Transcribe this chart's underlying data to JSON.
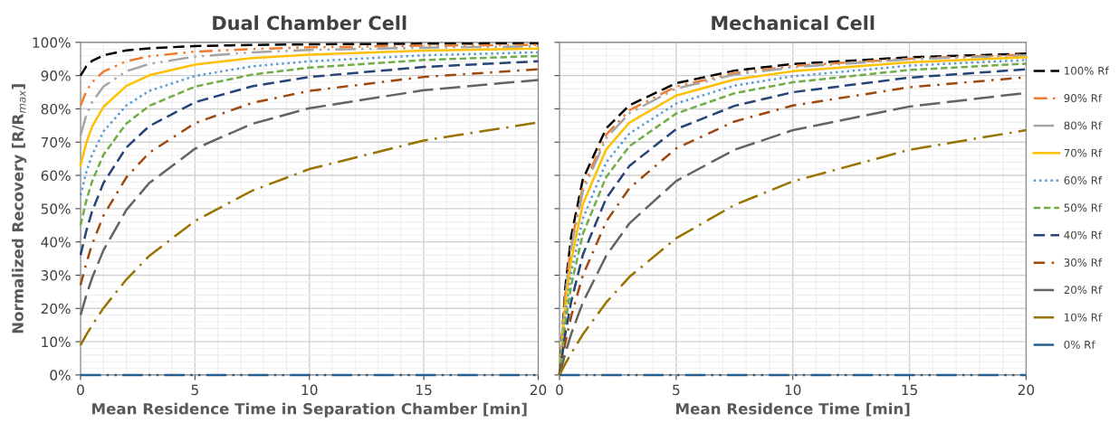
{
  "chart_data": [
    {
      "type": "line",
      "title": "Dual Chamber Cell",
      "xlabel": "Mean Residence Time in Separation Chamber [min]",
      "ylabel": "Normalized Recovery [R/R$_{max}$]",
      "x": [
        0,
        0.25,
        0.5,
        1,
        2,
        3,
        5,
        7.5,
        10,
        15,
        20
      ],
      "xlim": [
        0,
        20
      ],
      "xticks": [
        0,
        5,
        10,
        15,
        20
      ],
      "ylim": [
        0,
        100
      ],
      "yticks": [
        {
          "value": 0,
          "label": "0%"
        },
        {
          "value": 10,
          "label": "10%"
        },
        {
          "value": 20,
          "label": "20%"
        },
        {
          "value": 30,
          "label": "30%"
        },
        {
          "value": 40,
          "label": "40%"
        },
        {
          "value": 50,
          "label": "50%"
        },
        {
          "value": 60,
          "label": "60%"
        },
        {
          "value": 70,
          "label": "70%"
        },
        {
          "value": 80,
          "label": "80%"
        },
        {
          "value": 90,
          "label": "90%"
        },
        {
          "value": 100,
          "label": "100%"
        }
      ],
      "grid": true,
      "legend": false,
      "marker": "none",
      "series": [
        {
          "color": "#000000",
          "line_style": "dashed",
          "values": [
            90,
            92.8,
            94.4,
            96.1,
            97.6,
            98.2,
            98.9,
            99.2,
            99.4,
            99.6,
            99.7
          ]
        },
        {
          "color": "#ed7d31",
          "line_style": "dashdotdot",
          "values": [
            81,
            85.3,
            88.0,
            91.2,
            94.3,
            95.8,
            97.2,
            98.0,
            98.5,
            99.0,
            99.2
          ]
        },
        {
          "color": "#a5a5a5",
          "line_style": "longdashdotdot",
          "values": [
            72,
            78.1,
            82.0,
            86.7,
            91.3,
            93.5,
            95.7,
            97.0,
            97.7,
            98.4,
            98.8
          ]
        },
        {
          "color": "#ffc000",
          "line_style": "solid",
          "values": [
            63,
            69.8,
            74.6,
            80.6,
            86.9,
            90.1,
            93.3,
            95.3,
            96.3,
            97.5,
            98.1
          ]
        },
        {
          "color": "#5b9bd5",
          "line_style": "dotted",
          "values": [
            54,
            61.0,
            66.1,
            73.2,
            81.0,
            85.4,
            89.9,
            92.8,
            94.3,
            96.1,
            97.0
          ]
        },
        {
          "color": "#70ad47",
          "line_style": "shortdashed",
          "values": [
            45,
            52.4,
            58.1,
            66.2,
            75.6,
            80.9,
            86.7,
            90.3,
            92.4,
            94.7,
            95.9
          ]
        },
        {
          "color": "#264478",
          "line_style": "dashed",
          "values": [
            36,
            43.3,
            49.1,
            57.7,
            68.4,
            74.8,
            82.0,
            86.8,
            89.6,
            92.6,
            94.3
          ]
        },
        {
          "color": "#9e480e",
          "line_style": "dashdot",
          "values": [
            27,
            33.6,
            39.2,
            47.9,
            59.4,
            66.8,
            75.7,
            81.8,
            85.4,
            89.6,
            91.9
          ]
        },
        {
          "color": "#636363",
          "line_style": "longdashed",
          "values": [
            18,
            23.9,
            29.1,
            37.5,
            49.6,
            57.7,
            68.0,
            75.5,
            80.2,
            85.6,
            88.7
          ]
        },
        {
          "color": "#997300",
          "line_style": "longdashdot",
          "values": [
            9,
            12.1,
            14.9,
            20.1,
            28.7,
            35.8,
            46.3,
            55.4,
            61.9,
            70.5,
            75.9
          ]
        },
        {
          "color": "#255e91",
          "line_style": "longdashdotdot",
          "values": [
            0,
            0,
            0,
            0,
            0,
            0,
            0,
            0,
            0,
            0,
            0
          ]
        }
      ]
    },
    {
      "type": "line",
      "title": "Mechanical Cell",
      "xlabel": "Mean Residence Time [min]",
      "x": [
        0,
        0.25,
        0.5,
        1,
        2,
        3,
        5,
        7.5,
        10,
        15,
        20
      ],
      "xlim": [
        0,
        20
      ],
      "xticks": [
        0,
        5,
        10,
        15,
        20
      ],
      "ylim": [
        0,
        100
      ],
      "yticks": [
        0,
        10,
        20,
        30,
        40,
        50,
        60,
        70,
        80,
        90,
        100
      ],
      "tick_labels": "x",
      "grid": true,
      "legend": "right",
      "marker": "none",
      "series": [
        {
          "name": "100% Rf",
          "color": "#000000",
          "line_style": "dashed",
          "values": [
            0,
            26.3,
            41.7,
            58.8,
            74.1,
            81.1,
            87.7,
            91.5,
            93.5,
            95.5,
            96.6
          ]
        },
        {
          "name": "90% Rf",
          "color": "#ed7d31",
          "line_style": "dashdotdot",
          "values": [
            0,
            24.5,
            39.4,
            56.5,
            72.2,
            79.6,
            86.7,
            90.7,
            92.9,
            95.1,
            96.3
          ]
        },
        {
          "name": "80% Rf",
          "color": "#a5a5a5",
          "line_style": "longdashdotdot",
          "values": [
            0,
            23.6,
            38.2,
            55.2,
            71.2,
            78.7,
            86.1,
            90.3,
            92.5,
            94.9,
            96.1
          ]
        },
        {
          "name": "70% Rf",
          "color": "#ffc000",
          "line_style": "solid",
          "values": [
            0,
            20.8,
            34.5,
            51.3,
            67.8,
            75.9,
            84.0,
            88.8,
            91.3,
            94.0,
            95.5
          ]
        },
        {
          "name": "60% Rf",
          "color": "#5b9bd5",
          "line_style": "dotted",
          "values": [
            0,
            18.1,
            30.7,
            47.0,
            63.9,
            72.6,
            81.6,
            87.0,
            89.8,
            93.0,
            94.7
          ]
        },
        {
          "name": "50% Rf",
          "color": "#70ad47",
          "line_style": "shortdashed",
          "values": [
            0,
            15.5,
            26.9,
            42.4,
            59.5,
            68.8,
            78.6,
            84.7,
            88.0,
            91.7,
            93.6
          ]
        },
        {
          "name": "40% Rf",
          "color": "#264478",
          "line_style": "dashed",
          "values": [
            0,
            12.4,
            22.0,
            36.1,
            53.1,
            62.9,
            73.9,
            80.9,
            85.0,
            89.4,
            91.9
          ]
        },
        {
          "name": "30% Rf",
          "color": "#9e480e",
          "line_style": "dashdot",
          "values": [
            0,
            9.7,
            17.6,
            29.9,
            46.1,
            56.2,
            68.1,
            76.2,
            81.0,
            86.5,
            89.5
          ]
        },
        {
          "name": "20% Rf",
          "color": "#636363",
          "line_style": "longdashed",
          "values": [
            0,
            6.5,
            12.3,
            21.8,
            35.8,
            45.6,
            58.3,
            67.7,
            73.6,
            80.7,
            84.8
          ]
        },
        {
          "name": "10% Rf",
          "color": "#997300",
          "line_style": "longdashdot",
          "values": [
            0,
            3.4,
            6.5,
            12.2,
            21.8,
            29.5,
            41.1,
            51.1,
            58.2,
            67.7,
            73.6
          ]
        },
        {
          "name": "0% Rf",
          "color": "#255e91",
          "line_style": "longdashdotdot",
          "values": [
            0,
            0,
            0,
            0,
            0,
            0,
            0,
            0,
            0,
            0,
            0
          ]
        }
      ]
    }
  ]
}
